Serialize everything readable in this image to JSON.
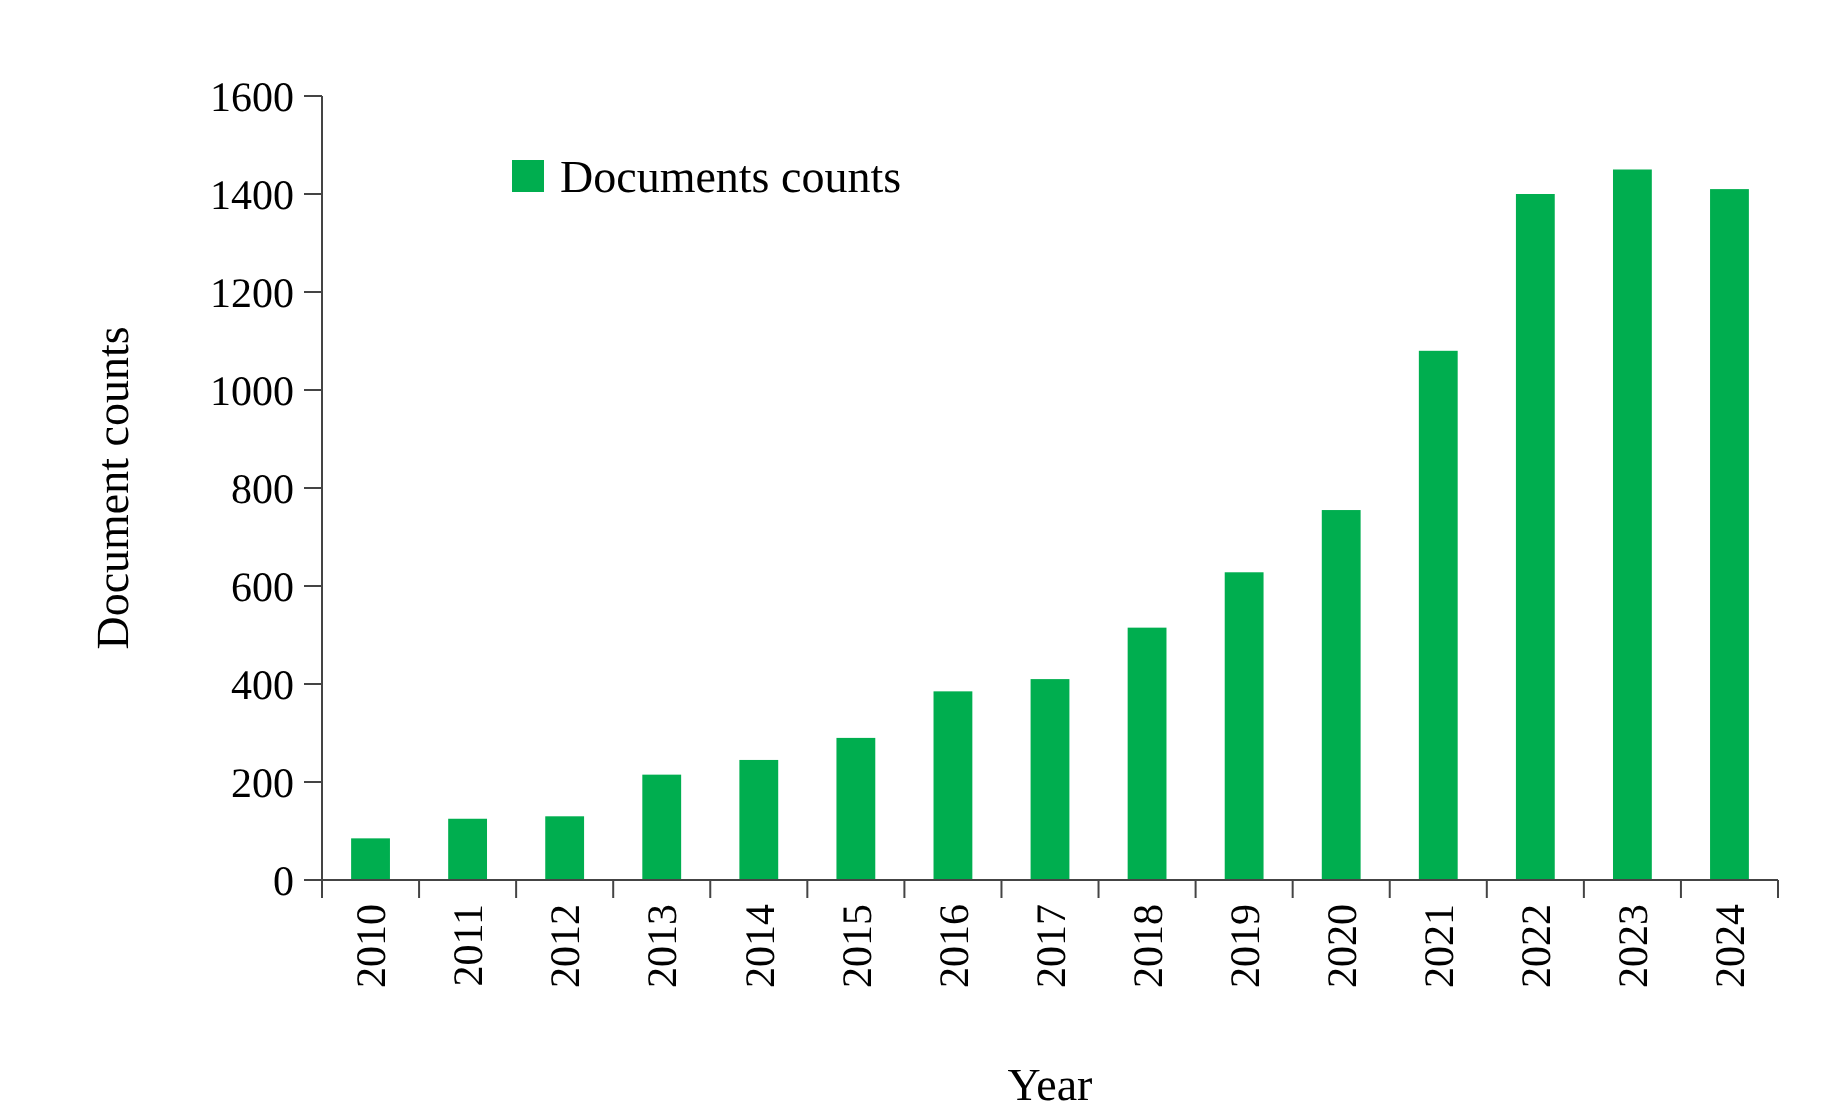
{
  "chart_data": {
    "type": "bar",
    "xlabel": "Year",
    "ylabel": "Document counts",
    "categories": [
      "2010",
      "2011",
      "2012",
      "2013",
      "2014",
      "2015",
      "2016",
      "2017",
      "2018",
      "2019",
      "2020",
      "2021",
      "2022",
      "2023",
      "2024"
    ],
    "series": [
      {
        "name": "Documents counts",
        "color": "#00ae4f",
        "values": [
          85,
          125,
          130,
          215,
          245,
          290,
          385,
          410,
          515,
          628,
          755,
          1080,
          1400,
          1450,
          1410
        ]
      }
    ],
    "ylim": [
      0,
      1600
    ],
    "yticks": [
      0,
      200,
      400,
      600,
      800,
      1000,
      1200,
      1400,
      1600
    ],
    "grid": false,
    "legend": "top left"
  }
}
